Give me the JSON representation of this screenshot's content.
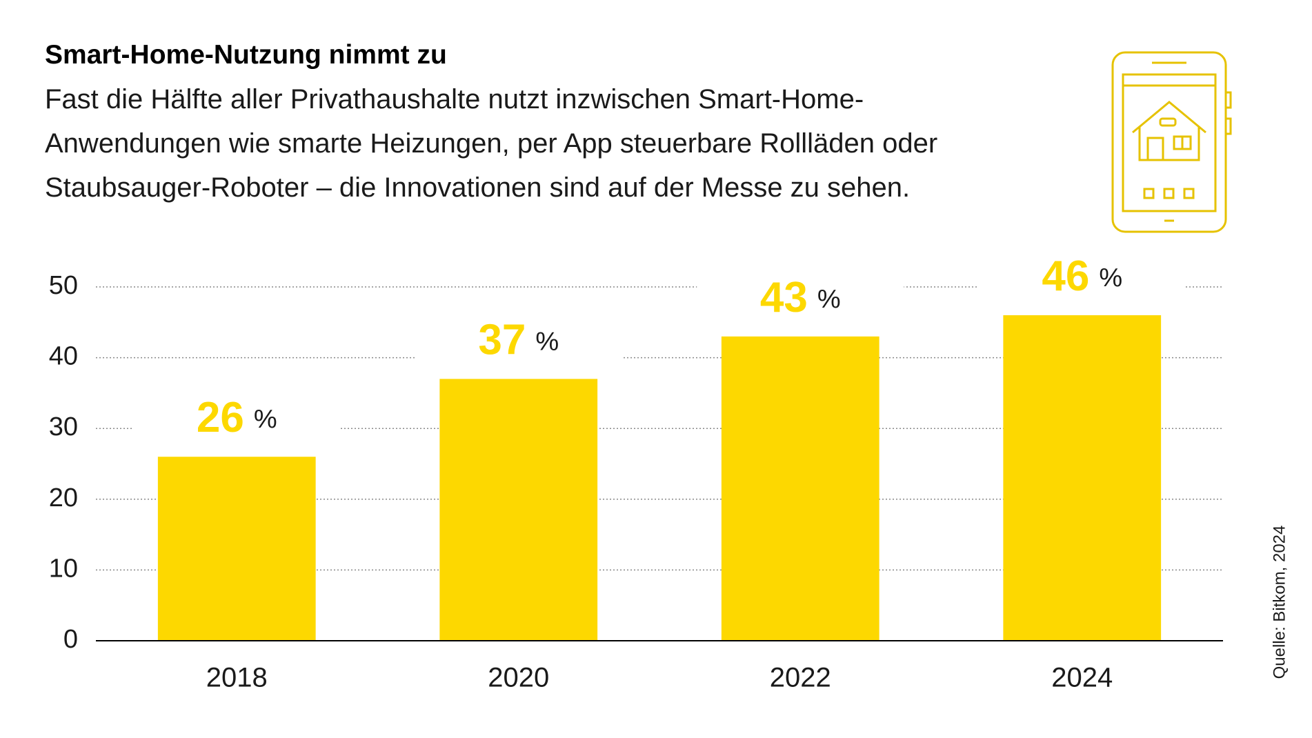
{
  "chart_data": {
    "type": "bar",
    "title": "Smart-Home-Nutzung nimmt zu",
    "subtitle": "Fast die Hälfte aller Privathaushalte nutzt inzwischen Smart-Home-Anwendungen wie smarte Heizungen, per App steuerbare Rollläden oder Staubsauger-Roboter – die Innovationen sind auf der Messe zu sehen.",
    "source": "Quelle: Bitkom, 2024",
    "categories": [
      "2018",
      "2020",
      "2022",
      "2024"
    ],
    "values": [
      26,
      37,
      43,
      46
    ],
    "unit": "%",
    "color": "#fdd800",
    "ylim": [
      0,
      50
    ],
    "yticks": [
      0,
      10,
      20,
      30,
      40,
      50
    ],
    "grid": true
  }
}
